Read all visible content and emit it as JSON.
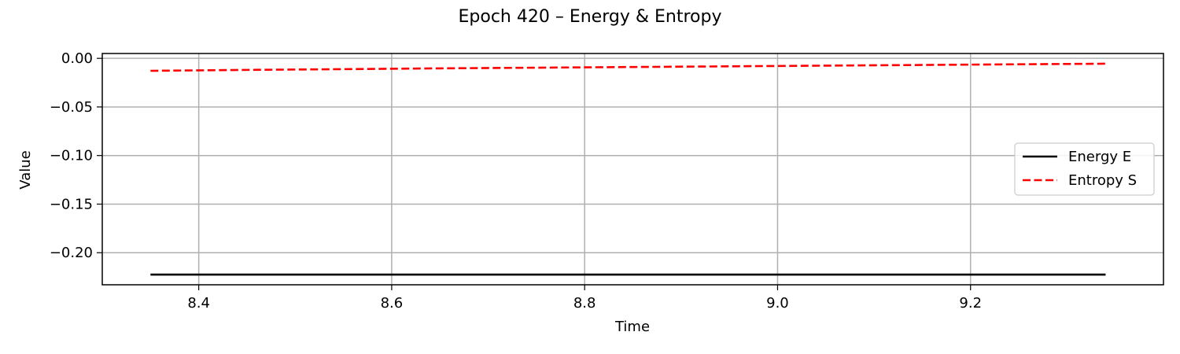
{
  "chart_data": {
    "type": "line",
    "title": "Epoch 420 – Energy & Entropy",
    "xlabel": "Time",
    "ylabel": "Value",
    "xlim": [
      8.3,
      9.4
    ],
    "ylim": [
      -0.233,
      0.005
    ],
    "xticks": [
      8.4,
      8.6,
      8.8,
      9.0,
      9.2
    ],
    "xtick_labels": [
      "8.4",
      "8.6",
      "8.8",
      "9.0",
      "9.2"
    ],
    "yticks": [
      0.0,
      -0.05,
      -0.1,
      -0.15,
      -0.2
    ],
    "ytick_labels": [
      "0.00",
      "−0.05",
      "−0.10",
      "−0.15",
      "−0.20"
    ],
    "grid": true,
    "legend_position": "center-right",
    "series": [
      {
        "name": "Energy E",
        "color": "#000000",
        "style": "solid",
        "x": [
          8.35,
          9.34
        ],
        "y": [
          -0.2225,
          -0.2225
        ]
      },
      {
        "name": "Entropy S",
        "color": "#ff0000",
        "style": "dashed",
        "x": [
          8.35,
          8.45,
          8.55,
          8.65,
          8.75,
          8.85,
          8.95,
          9.05,
          9.15,
          9.25,
          9.34
        ],
        "y": [
          -0.0128,
          -0.0119,
          -0.0111,
          -0.0103,
          -0.0096,
          -0.0089,
          -0.0082,
          -0.0075,
          -0.0068,
          -0.0061,
          -0.0055
        ]
      }
    ]
  }
}
